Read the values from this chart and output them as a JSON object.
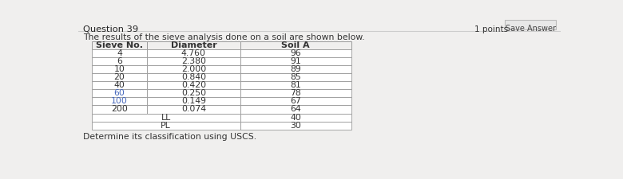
{
  "title": "Question 39",
  "points_label": "1 points",
  "save_button": "Save Answer",
  "subtitle": "The results of the sieve analysis done on a soil are shown below.",
  "footer": "Determine its classification using USCS.",
  "headers": [
    "Sieve No.",
    "Diameter",
    "Soil A"
  ],
  "rows": [
    [
      "4",
      "4.760",
      "96"
    ],
    [
      "6",
      "2.380",
      "91"
    ],
    [
      "10",
      "2.000",
      "89"
    ],
    [
      "20",
      "0.840",
      "85"
    ],
    [
      "40",
      "0.420",
      "81"
    ],
    [
      "60",
      "0.250",
      "78"
    ],
    [
      "100",
      "0.149",
      "67"
    ],
    [
      "200",
      "0.074",
      "64"
    ],
    [
      "LL",
      "40"
    ],
    [
      "PL",
      "30"
    ]
  ],
  "blue_rows": [
    5,
    6
  ],
  "bg_color": "#f0efee",
  "table_bg": "#ffffff",
  "header_bg": "#f0efee",
  "border_color": "#999999",
  "text_color": "#333333",
  "text_color_blue": "#4466bb",
  "title_color": "#222222",
  "font_size": 7.8,
  "header_font_size": 8.0,
  "title_font_size": 8.2,
  "subtitle_font_size": 7.8,
  "footer_font_size": 7.8
}
